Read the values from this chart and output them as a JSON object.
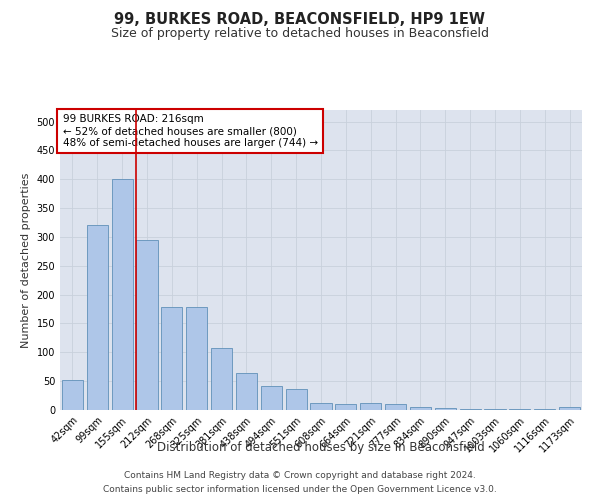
{
  "title1": "99, BURKES ROAD, BEACONSFIELD, HP9 1EW",
  "title2": "Size of property relative to detached houses in Beaconsfield",
  "xlabel": "Distribution of detached houses by size in Beaconsfield",
  "ylabel": "Number of detached properties",
  "categories": [
    "42sqm",
    "99sqm",
    "155sqm",
    "212sqm",
    "268sqm",
    "325sqm",
    "381sqm",
    "438sqm",
    "494sqm",
    "551sqm",
    "608sqm",
    "664sqm",
    "721sqm",
    "777sqm",
    "834sqm",
    "890sqm",
    "947sqm",
    "1003sqm",
    "1060sqm",
    "1116sqm",
    "1173sqm"
  ],
  "values": [
    52,
    320,
    400,
    295,
    178,
    178,
    107,
    65,
    42,
    37,
    12,
    10,
    13,
    10,
    6,
    4,
    2,
    1,
    1,
    1,
    5
  ],
  "bar_color": "#aec6e8",
  "bar_edge_color": "#6090b8",
  "annotation_text": "99 BURKES ROAD: 216sqm\n← 52% of detached houses are smaller (800)\n48% of semi-detached houses are larger (744) →",
  "annotation_box_color": "#ffffff",
  "annotation_box_edge": "#cc0000",
  "ylim": [
    0,
    520
  ],
  "yticks": [
    0,
    50,
    100,
    150,
    200,
    250,
    300,
    350,
    400,
    450,
    500
  ],
  "grid_color": "#c8d0dc",
  "background_color": "#dde3ee",
  "footer_line1": "Contains HM Land Registry data © Crown copyright and database right 2024.",
  "footer_line2": "Contains public sector information licensed under the Open Government Licence v3.0.",
  "title1_fontsize": 10.5,
  "title2_fontsize": 9,
  "xlabel_fontsize": 8.5,
  "ylabel_fontsize": 8,
  "tick_fontsize": 7,
  "annotation_fontsize": 7.5,
  "footer_fontsize": 6.5,
  "red_line_index": 2.575
}
